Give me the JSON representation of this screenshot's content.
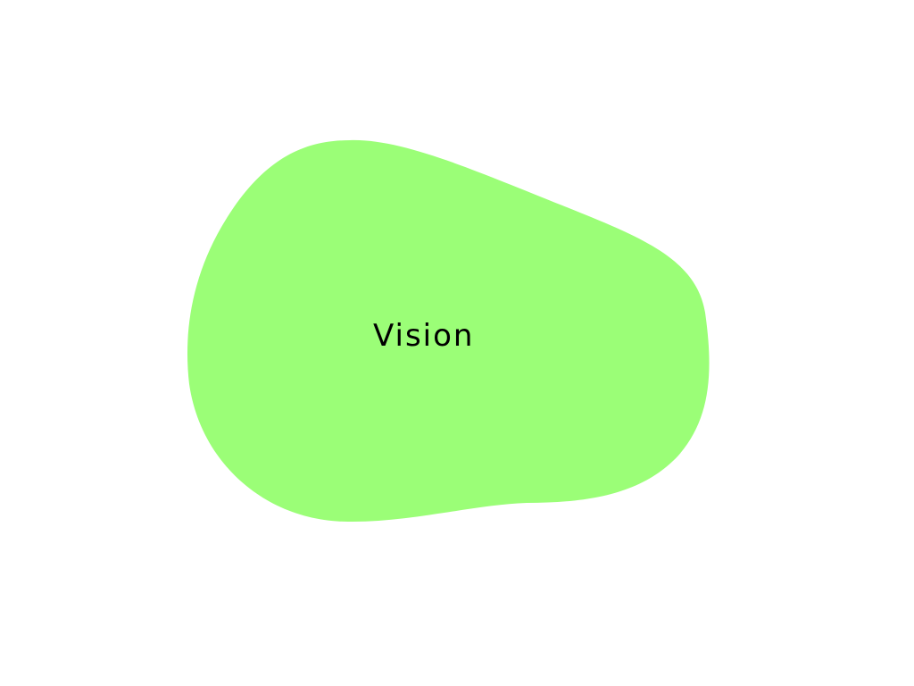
{
  "diagram": {
    "blob": {
      "label": "Vision",
      "fill_color": "#9bfe77",
      "label_color": "#000000"
    },
    "background_color": "#ffffff"
  }
}
